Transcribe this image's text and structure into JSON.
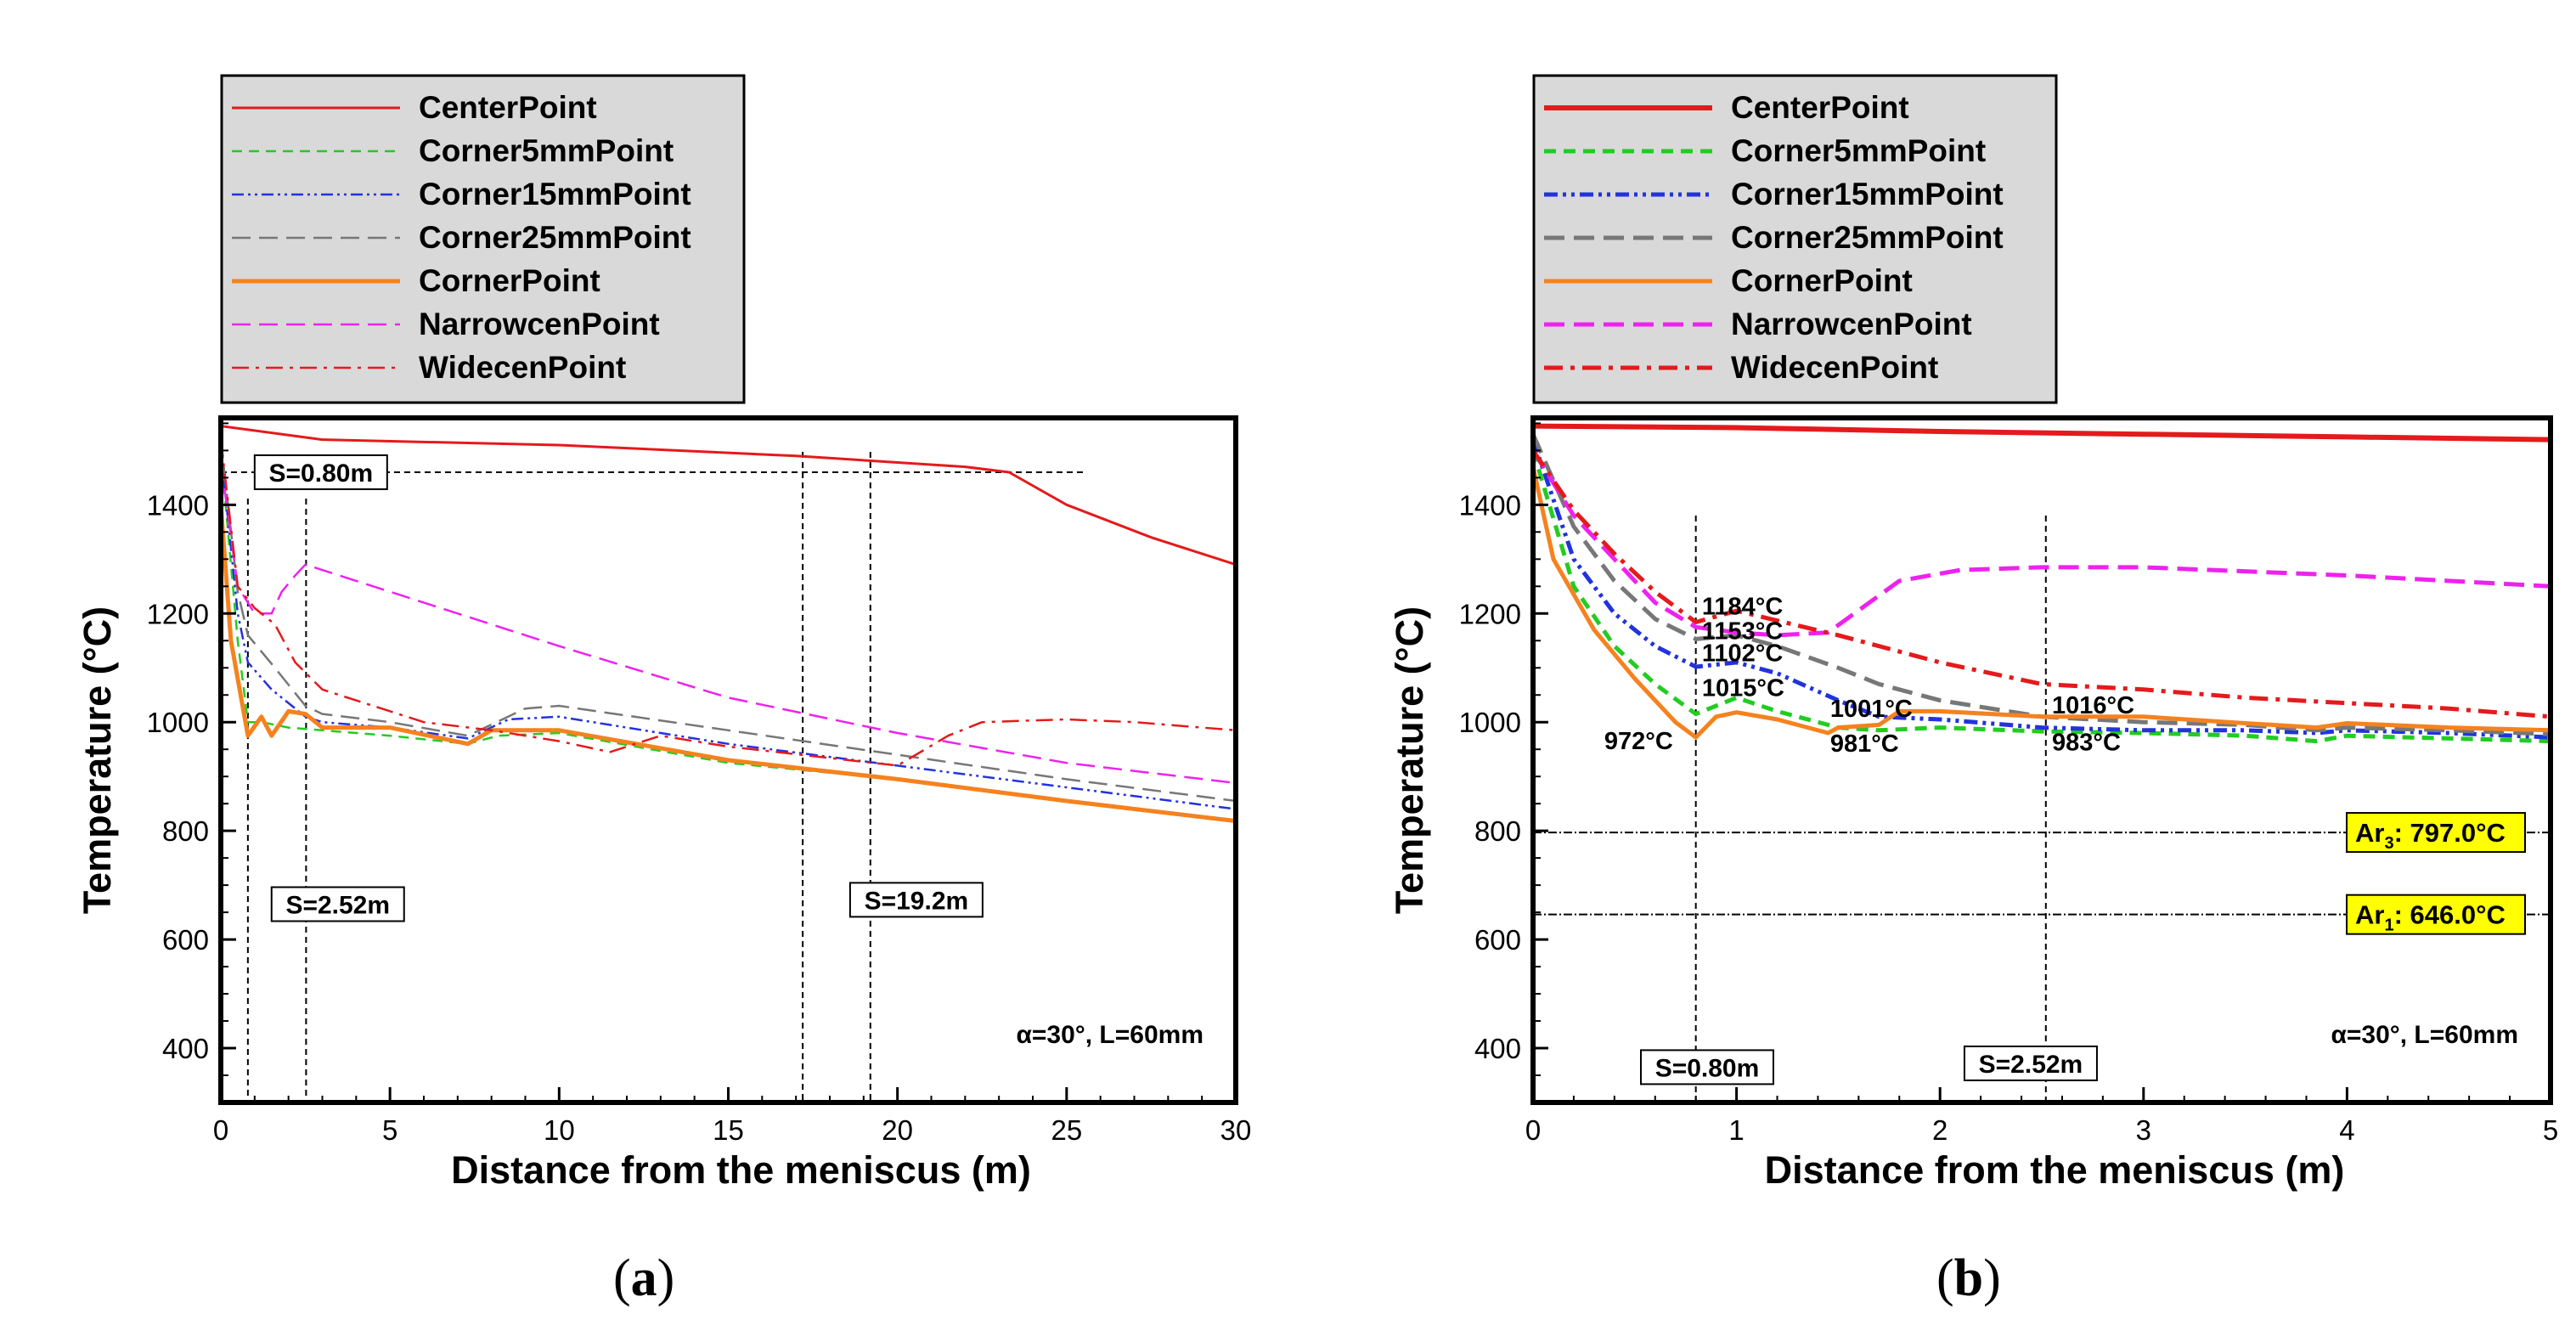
{
  "captions": {
    "a": "a",
    "b": "b"
  },
  "legend": [
    {
      "name": "CenterPoint",
      "color": "#e41a1c",
      "dash": "solid"
    },
    {
      "name": "Corner5mmPoint",
      "color": "#22cc22",
      "dash": "dash"
    },
    {
      "name": "Corner15mmPoint",
      "color": "#2233dd",
      "dash": "dashdotdot"
    },
    {
      "name": "Corner25mmPoint",
      "color": "#777777",
      "dash": "longdash"
    },
    {
      "name": "CornerPoint",
      "color": "#f5821f",
      "dash": "solid"
    },
    {
      "name": "NarrowcenPoint",
      "color": "#ee22ee",
      "dash": "longdash"
    },
    {
      "name": "WidecenPoint",
      "color": "#e41a1c",
      "dash": "dashdot"
    }
  ],
  "chart_data": [
    {
      "id": "a",
      "type": "line",
      "xlabel": "Distance from the meniscus (m)",
      "ylabel": "Temperature (°C)",
      "xlim": [
        0,
        30
      ],
      "ylim": [
        300,
        1560
      ],
      "xticks": [
        0,
        5,
        10,
        15,
        20,
        25,
        30
      ],
      "yticks": [
        400,
        600,
        800,
        1000,
        1200,
        1400
      ],
      "series": [
        {
          "name": "CenterPoint",
          "x": [
            0,
            3,
            10,
            17,
            22,
            23.3,
            25,
            27.5,
            30
          ],
          "y": [
            1545,
            1520,
            1510,
            1490,
            1470,
            1460,
            1400,
            1340,
            1290
          ]
        },
        {
          "name": "Corner5mmPoint",
          "x": [
            0,
            0.5,
            0.8,
            1.2,
            2,
            3,
            5,
            7.3,
            8.2,
            10,
            15,
            20,
            25,
            30
          ],
          "y": [
            1500,
            1150,
            1000,
            1000,
            990,
            985,
            975,
            960,
            975,
            980,
            925,
            895,
            855,
            820
          ]
        },
        {
          "name": "Corner15mmPoint",
          "x": [
            0,
            0.5,
            0.8,
            1.5,
            2.5,
            3,
            5,
            7.3,
            8.5,
            10,
            15,
            20,
            25,
            30
          ],
          "y": [
            1500,
            1200,
            1110,
            1060,
            1010,
            1000,
            990,
            970,
            1005,
            1010,
            960,
            920,
            880,
            840
          ]
        },
        {
          "name": "Corner25mmPoint",
          "x": [
            0,
            0.5,
            0.8,
            1.6,
            2.5,
            3,
            5,
            7.3,
            9,
            10,
            15,
            20,
            25,
            30
          ],
          "y": [
            1520,
            1240,
            1160,
            1100,
            1030,
            1015,
            1000,
            975,
            1025,
            1030,
            985,
            940,
            895,
            855
          ]
        },
        {
          "name": "CornerPoint",
          "x": [
            0,
            0.3,
            0.8,
            1.2,
            1.5,
            2,
            2.5,
            3,
            5,
            7.3,
            8,
            10,
            15,
            20,
            25,
            30
          ],
          "y": [
            1400,
            1150,
            975,
            1010,
            975,
            1020,
            1015,
            990,
            990,
            960,
            985,
            985,
            930,
            895,
            855,
            818
          ]
        },
        {
          "name": "NarrowcenPoint",
          "x": [
            0,
            0.5,
            1,
            1.5,
            1.8,
            2.2,
            2.5,
            5,
            10,
            15,
            20,
            25,
            30
          ],
          "y": [
            1480,
            1250,
            1200,
            1200,
            1240,
            1270,
            1290,
            1240,
            1140,
            1045,
            980,
            925,
            888
          ]
        },
        {
          "name": "WidecenPoint",
          "x": [
            0,
            0.5,
            1,
            1.6,
            2.2,
            3,
            4,
            6,
            8,
            10,
            11.5,
            13,
            15,
            20,
            21.5,
            22.5,
            25,
            27,
            30
          ],
          "y": [
            1520,
            1250,
            1210,
            1180,
            1110,
            1060,
            1040,
            1000,
            985,
            965,
            945,
            975,
            955,
            920,
            975,
            1000,
            1005,
            1000,
            985
          ]
        }
      ],
      "vlines": [
        0.8,
        2.52,
        17.2,
        19.2
      ],
      "hlines": [
        {
          "y": 1460,
          "x0": 0,
          "x1": 25.5
        }
      ],
      "boxes": [
        {
          "text": "S=0.80m",
          "x": 1,
          "y": 1460
        },
        {
          "text": "S=2.52m",
          "x": 1.5,
          "y": 665
        },
        {
          "text": "S=19.2m",
          "x": 18.6,
          "y": 673
        }
      ],
      "note": "α=30°, L=60mm"
    },
    {
      "id": "b",
      "type": "line",
      "xlabel": "Distance from the meniscus (m)",
      "ylabel": "Temperature (°C)",
      "xlim": [
        0,
        5
      ],
      "ylim": [
        300,
        1560
      ],
      "xticks": [
        0,
        1,
        2,
        3,
        4,
        5
      ],
      "yticks": [
        400,
        600,
        800,
        1000,
        1200,
        1400
      ],
      "series": [
        {
          "name": "CenterPoint",
          "x": [
            0,
            1,
            2,
            3,
            4,
            5
          ],
          "y": [
            1545,
            1542,
            1535,
            1530,
            1525,
            1520
          ]
        },
        {
          "name": "Corner5mmPoint",
          "x": [
            0,
            0.2,
            0.4,
            0.6,
            0.8,
            1,
            1.2,
            1.5,
            1.7,
            2,
            2.5,
            3,
            3.5,
            3.85,
            4,
            4.5,
            5
          ],
          "y": [
            1500,
            1250,
            1140,
            1070,
            1015,
            1045,
            1020,
            990,
            985,
            990,
            983,
            980,
            975,
            965,
            975,
            970,
            965
          ]
        },
        {
          "name": "Corner15mmPoint",
          "x": [
            0,
            0.2,
            0.4,
            0.6,
            0.8,
            1,
            1.2,
            1.5,
            1.7,
            2,
            2.5,
            3,
            3.5,
            3.85,
            4,
            4.5,
            5
          ],
          "y": [
            1520,
            1300,
            1200,
            1140,
            1102,
            1110,
            1090,
            1040,
            1010,
            1005,
            990,
            985,
            985,
            980,
            985,
            980,
            972
          ]
        },
        {
          "name": "Corner25mmPoint",
          "x": [
            0,
            0.2,
            0.4,
            0.6,
            0.8,
            1,
            1.2,
            1.5,
            1.7,
            2,
            2.5,
            3,
            3.5,
            3.85,
            4,
            4.5,
            5
          ],
          "y": [
            1530,
            1360,
            1260,
            1190,
            1153,
            1160,
            1140,
            1100,
            1070,
            1040,
            1010,
            1000,
            995,
            985,
            990,
            985,
            978
          ]
        },
        {
          "name": "CornerPoint",
          "x": [
            0,
            0.1,
            0.3,
            0.5,
            0.7,
            0.8,
            0.9,
            1,
            1.2,
            1.45,
            1.5,
            1.7,
            1.8,
            2,
            2.5,
            3,
            3.5,
            3.85,
            4,
            4.5,
            5
          ],
          "y": [
            1470,
            1300,
            1170,
            1080,
            1000,
            972,
            1010,
            1018,
            1005,
            980,
            990,
            995,
            1020,
            1020,
            1010,
            1010,
            998,
            990,
            998,
            990,
            985
          ]
        },
        {
          "name": "NarrowcenPoint",
          "x": [
            0,
            0.2,
            0.4,
            0.6,
            0.8,
            1,
            1.2,
            1.45,
            1.8,
            2.1,
            2.5,
            3,
            4,
            5
          ],
          "y": [
            1500,
            1380,
            1300,
            1220,
            1175,
            1165,
            1160,
            1165,
            1260,
            1280,
            1285,
            1285,
            1270,
            1250
          ]
        },
        {
          "name": "WidecenPoint",
          "x": [
            0,
            0.2,
            0.4,
            0.6,
            0.8,
            1,
            1.5,
            2,
            2.5,
            3,
            3.5,
            4,
            4.5,
            5
          ],
          "y": [
            1500,
            1390,
            1310,
            1240,
            1184,
            1205,
            1160,
            1110,
            1070,
            1060,
            1045,
            1035,
            1025,
            1010
          ]
        }
      ],
      "vlines": [
        0.8,
        2.52
      ],
      "hlines": [
        {
          "y": 797,
          "x0": 0,
          "x1": 5
        },
        {
          "y": 646,
          "x0": 0,
          "x1": 5
        }
      ],
      "boxes": [
        {
          "text": "S=0.80m",
          "x": 0.53,
          "y": 365
        },
        {
          "text": "S=2.52m",
          "x": 2.12,
          "y": 372
        }
      ],
      "ar_boxes": [
        {
          "label": "Ar",
          "sub": "3",
          "value": ": 797.0°C",
          "y": 797
        },
        {
          "label": "Ar",
          "sub": "1",
          "value": ": 646.0°C",
          "y": 646
        }
      ],
      "annotations": [
        {
          "text": "1184°C",
          "x": 0.83,
          "y": 1198
        },
        {
          "text": "1153°C",
          "x": 0.83,
          "y": 1153
        },
        {
          "text": "1102°C",
          "x": 0.83,
          "y": 1112
        },
        {
          "text": "1015°C",
          "x": 0.83,
          "y": 1048
        },
        {
          "text": "972°C",
          "x": 0.35,
          "y": 950
        },
        {
          "text": "1001°C",
          "x": 1.46,
          "y": 1010
        },
        {
          "text": "981°C",
          "x": 1.46,
          "y": 946
        },
        {
          "text": "1016°C",
          "x": 2.55,
          "y": 1016
        },
        {
          "text": "983°C",
          "x": 2.55,
          "y": 948
        }
      ],
      "note": "α=30°, L=60mm"
    }
  ]
}
